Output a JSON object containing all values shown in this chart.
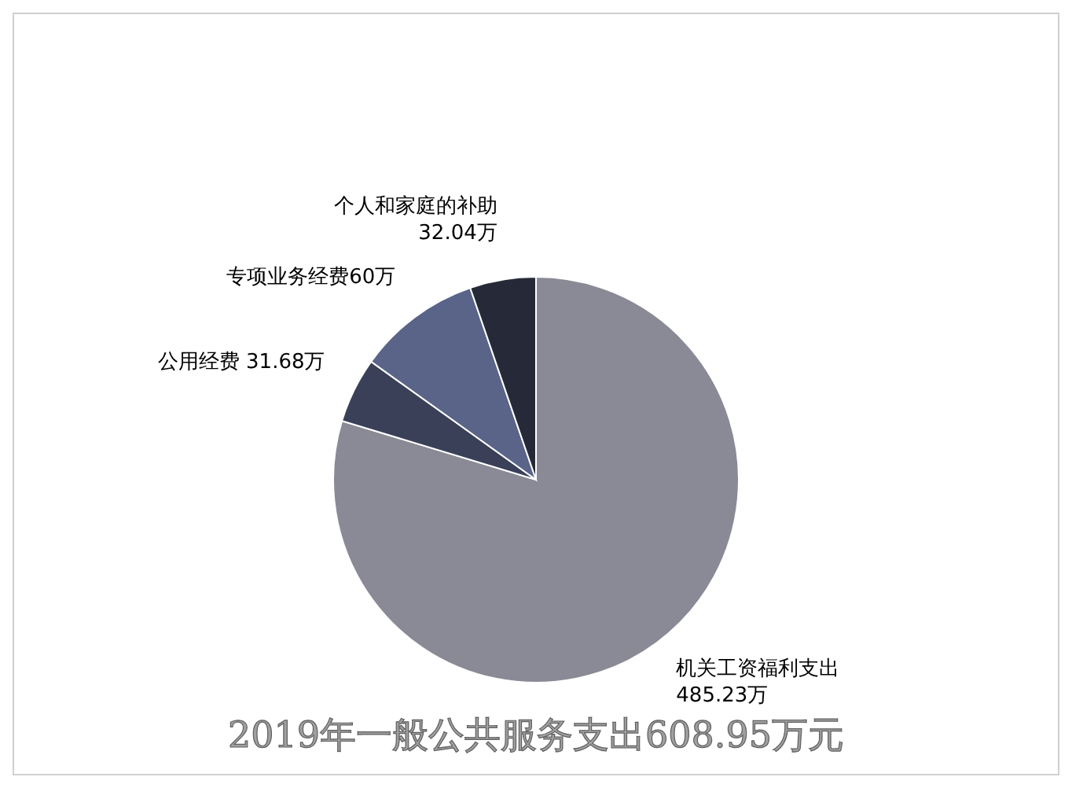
{
  "chart_data": {
    "type": "pie",
    "title": "2019年一般公共服务支出608.95万元",
    "categories": [
      "机关工资福利支出 485.23万",
      "公用经费 31.68万",
      "专项业务经费60万",
      "个人和家庭的补助32.04万"
    ],
    "values": [
      485.23,
      31.68,
      60,
      32.04
    ],
    "colors": [
      "#8a8a96",
      "#3a4058",
      "#5a6488",
      "#262a38"
    ],
    "legend": false
  }
}
